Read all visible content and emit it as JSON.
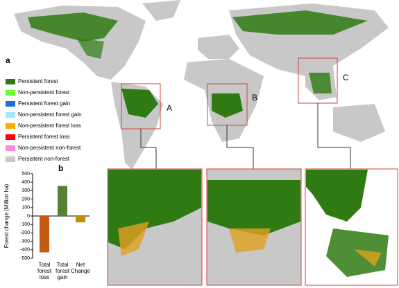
{
  "map": {
    "panel_label": "a",
    "regions": [
      "A",
      "B",
      "C"
    ],
    "legend": [
      {
        "label": "Persistent forest",
        "color": "#2f7a12"
      },
      {
        "label": "Non-persistent forest",
        "color": "#66ff33"
      },
      {
        "label": "Persistent forest gain",
        "color": "#1f6fd6"
      },
      {
        "label": "Non-persistent forest gain",
        "color": "#9fe8ff"
      },
      {
        "label": "Non-persistent forest loss",
        "color": "#ffaa00"
      },
      {
        "label": "Persistent forest loss",
        "color": "#ff0000"
      },
      {
        "label": "Non-persistent non-forest",
        "color": "#ff88dd"
      },
      {
        "label": "Persistent non-forest",
        "color": "#c8c8c8"
      }
    ]
  },
  "chart_data": {
    "type": "bar",
    "panel_label": "b",
    "y_label": "Forest change (Million ha)",
    "categories": [
      "Total forest loss",
      "Total forest gain",
      "Net Change"
    ],
    "values": [
      -430,
      355,
      -75
    ],
    "colors": [
      "#c55a11",
      "#548235",
      "#bf9000"
    ],
    "ylim": [
      -500,
      500
    ],
    "yticks": [
      -500,
      -400,
      -300,
      -200,
      -100,
      0,
      100,
      200,
      300,
      400,
      500
    ]
  }
}
